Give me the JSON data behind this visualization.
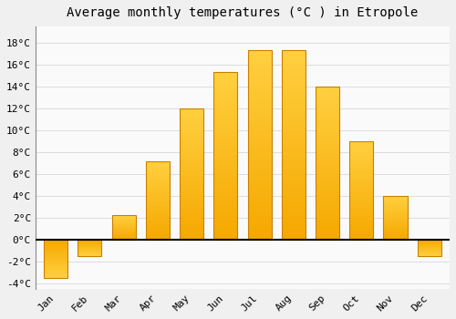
{
  "title": "Average monthly temperatures (°C ) in Etropole",
  "months": [
    "Jan",
    "Feb",
    "Mar",
    "Apr",
    "May",
    "Jun",
    "Jul",
    "Aug",
    "Sep",
    "Oct",
    "Nov",
    "Dec"
  ],
  "temperatures": [
    -3.5,
    -1.5,
    2.2,
    7.2,
    12.0,
    15.3,
    17.3,
    17.3,
    14.0,
    9.0,
    4.0,
    -1.5
  ],
  "bar_color_bottom": "#F5A800",
  "bar_color_top": "#FFD040",
  "bar_edge_color": "#C88000",
  "background_color": "#F0F0F0",
  "plot_bg_color": "#FAFAFA",
  "ylim": [
    -4.5,
    19.5
  ],
  "yticks": [
    -4,
    -2,
    0,
    2,
    4,
    6,
    8,
    10,
    12,
    14,
    16,
    18
  ],
  "grid_color": "#DDDDDD",
  "title_fontsize": 10,
  "tick_fontsize": 8,
  "zero_line_color": "#000000",
  "bar_width": 0.7
}
